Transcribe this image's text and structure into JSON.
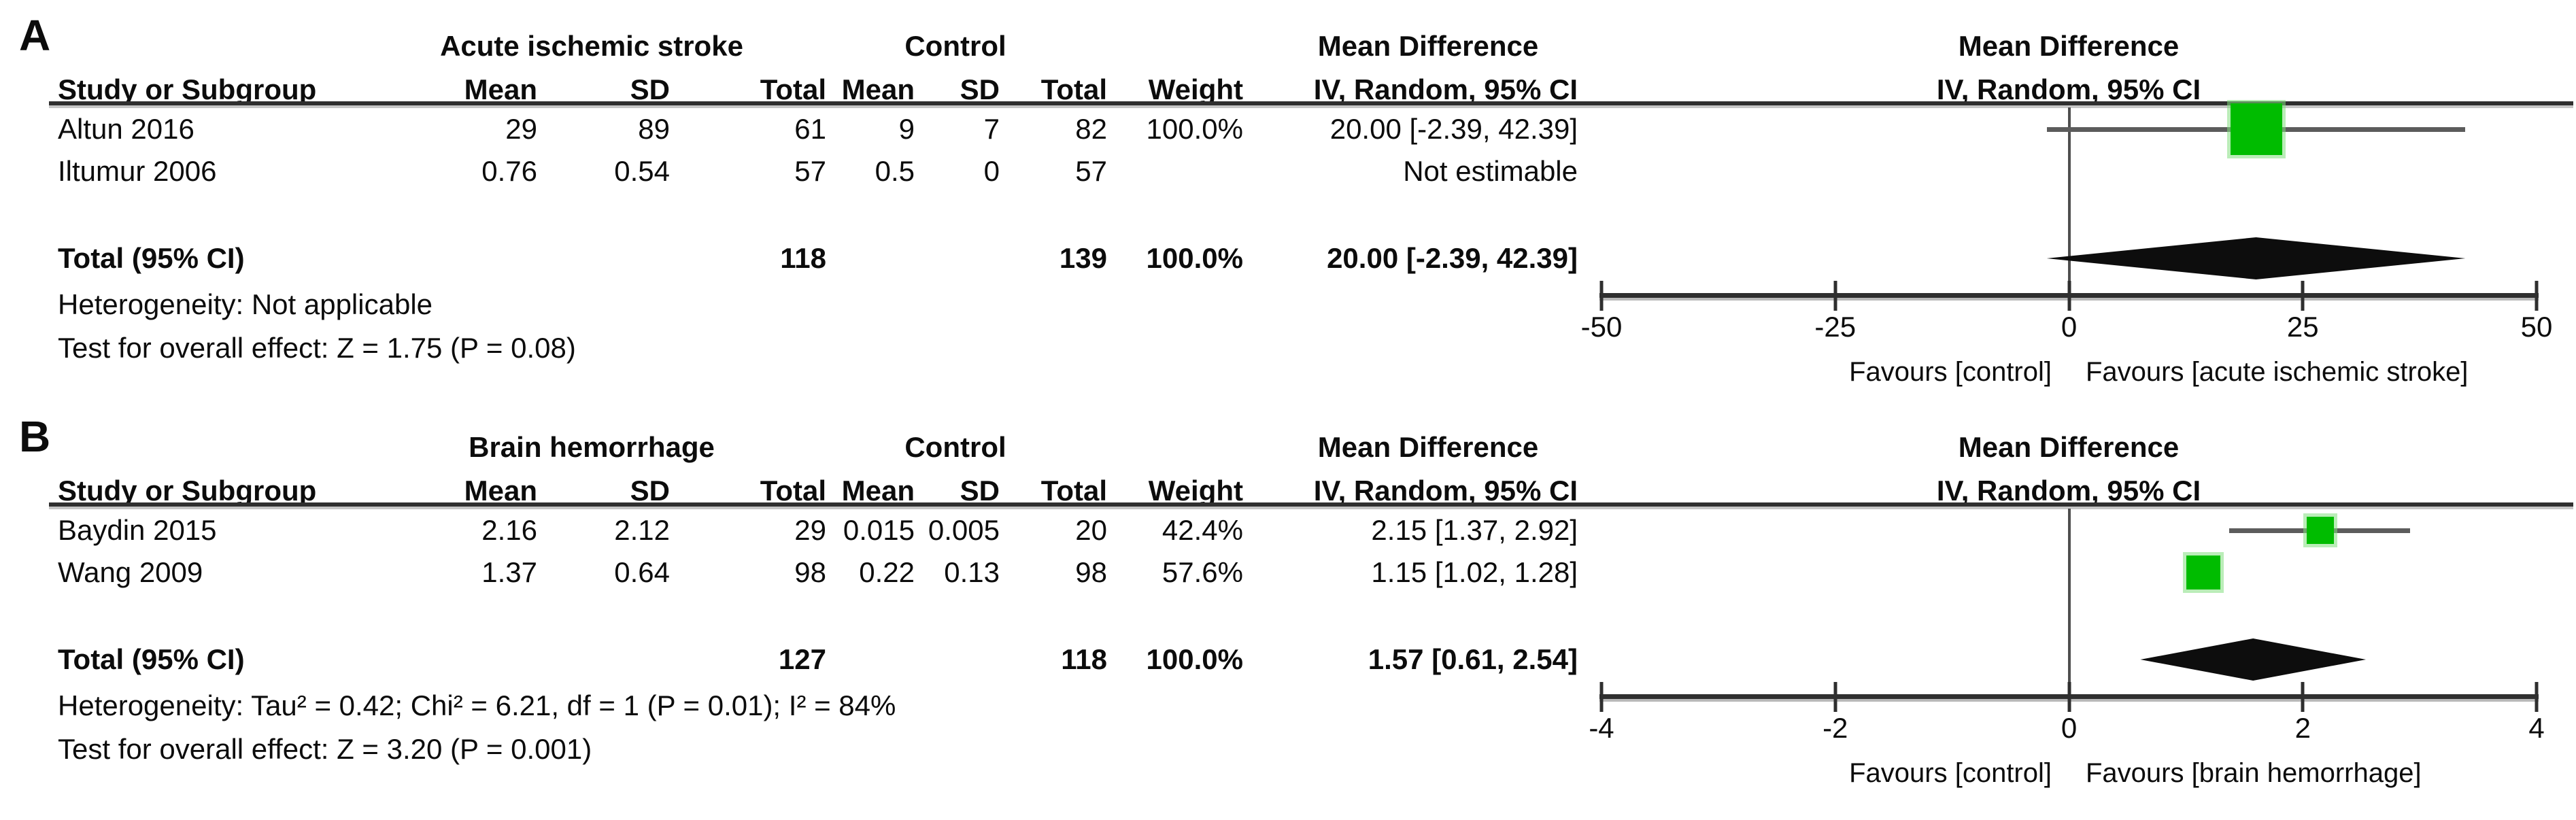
{
  "colors": {
    "square_green": "#00bc00",
    "diamond_black": "#0d0d0d",
    "ci_line_gray": "#5c5c5c",
    "axis_dark_gray": "#2f2f2f",
    "text": "#0c0c0c",
    "background": "#ffffff"
  },
  "chart_data": [
    {
      "type": "forest",
      "panel_label": "A",
      "group_headers": {
        "experimental": "Acute ischemic stroke",
        "control": "Control",
        "effect_table": "Mean Difference",
        "effect_plot": "Mean Difference"
      },
      "column_headers": {
        "study": "Study or Subgroup",
        "mean": "Mean",
        "sd": "SD",
        "total": "Total",
        "weight": "Weight",
        "ci_table": "IV, Random, 95% CI",
        "ci_plot": "IV, Random, 95% CI"
      },
      "studies": [
        {
          "study": "Altun 2016",
          "mean_exp": "29",
          "sd_exp": "89",
          "total_exp": "61",
          "mean_ctrl": "9",
          "sd_ctrl": "7",
          "total_ctrl": "82",
          "weight": "100.0%",
          "ci_text": "20.00 [-2.39, 42.39]",
          "estimate": 20.0,
          "ci_low": -2.39,
          "ci_high": 42.39,
          "weight_pct": 100.0
        },
        {
          "study": "Iltumur 2006",
          "mean_exp": "0.76",
          "sd_exp": "0.54",
          "total_exp": "57",
          "mean_ctrl": "0.5",
          "sd_ctrl": "0",
          "total_ctrl": "57",
          "weight": "",
          "ci_text": "Not estimable",
          "estimate": null,
          "ci_low": null,
          "ci_high": null,
          "weight_pct": null
        }
      ],
      "total": {
        "label": "Total (95% CI)",
        "total_exp": "118",
        "total_ctrl": "139",
        "weight": "100.0%",
        "ci_text": "20.00 [-2.39, 42.39]",
        "estimate": 20.0,
        "ci_low": -2.39,
        "ci_high": 42.39
      },
      "heterogeneity": "Heterogeneity: Not applicable",
      "overall_effect": "Test for overall effect: Z = 1.75 (P = 0.08)",
      "axis": {
        "min": -50,
        "max": 50,
        "ticks": [
          -50,
          -25,
          0,
          25,
          50
        ]
      },
      "favours_left": "Favours [control]",
      "favours_right": "Favours [acute ischemic stroke]"
    },
    {
      "type": "forest",
      "panel_label": "B",
      "group_headers": {
        "experimental": "Brain hemorrhage",
        "control": "Control",
        "effect_table": "Mean Difference",
        "effect_plot": "Mean Difference"
      },
      "column_headers": {
        "study": "Study or Subgroup",
        "mean": "Mean",
        "sd": "SD",
        "total": "Total",
        "weight": "Weight",
        "ci_table": "IV, Random, 95% CI",
        "ci_plot": "IV, Random, 95% CI"
      },
      "studies": [
        {
          "study": "Baydin 2015",
          "mean_exp": "2.16",
          "sd_exp": "2.12",
          "total_exp": "29",
          "mean_ctrl": "0.015",
          "sd_ctrl": "0.005",
          "total_ctrl": "20",
          "weight": "42.4%",
          "ci_text": "2.15 [1.37, 2.92]",
          "estimate": 2.15,
          "ci_low": 1.37,
          "ci_high": 2.92,
          "weight_pct": 42.4
        },
        {
          "study": "Wang 2009",
          "mean_exp": "1.37",
          "sd_exp": "0.64",
          "total_exp": "98",
          "mean_ctrl": "0.22",
          "sd_ctrl": "0.13",
          "total_ctrl": "98",
          "weight": "57.6%",
          "ci_text": "1.15 [1.02, 1.28]",
          "estimate": 1.15,
          "ci_low": 1.02,
          "ci_high": 1.28,
          "weight_pct": 57.6
        }
      ],
      "total": {
        "label": "Total (95% CI)",
        "total_exp": "127",
        "total_ctrl": "118",
        "weight": "100.0%",
        "ci_text": "1.57 [0.61, 2.54]",
        "estimate": 1.57,
        "ci_low": 0.61,
        "ci_high": 2.54
      },
      "heterogeneity": "Heterogeneity: Tau² = 0.42; Chi² = 6.21, df = 1 (P = 0.01); I² = 84%",
      "overall_effect": "Test for overall effect: Z = 3.20 (P = 0.001)",
      "axis": {
        "min": -4,
        "max": 4,
        "ticks": [
          -4,
          -2,
          0,
          2,
          4
        ]
      },
      "favours_left": "Favours [control]",
      "favours_right": "Favours [brain hemorrhage]"
    }
  ]
}
